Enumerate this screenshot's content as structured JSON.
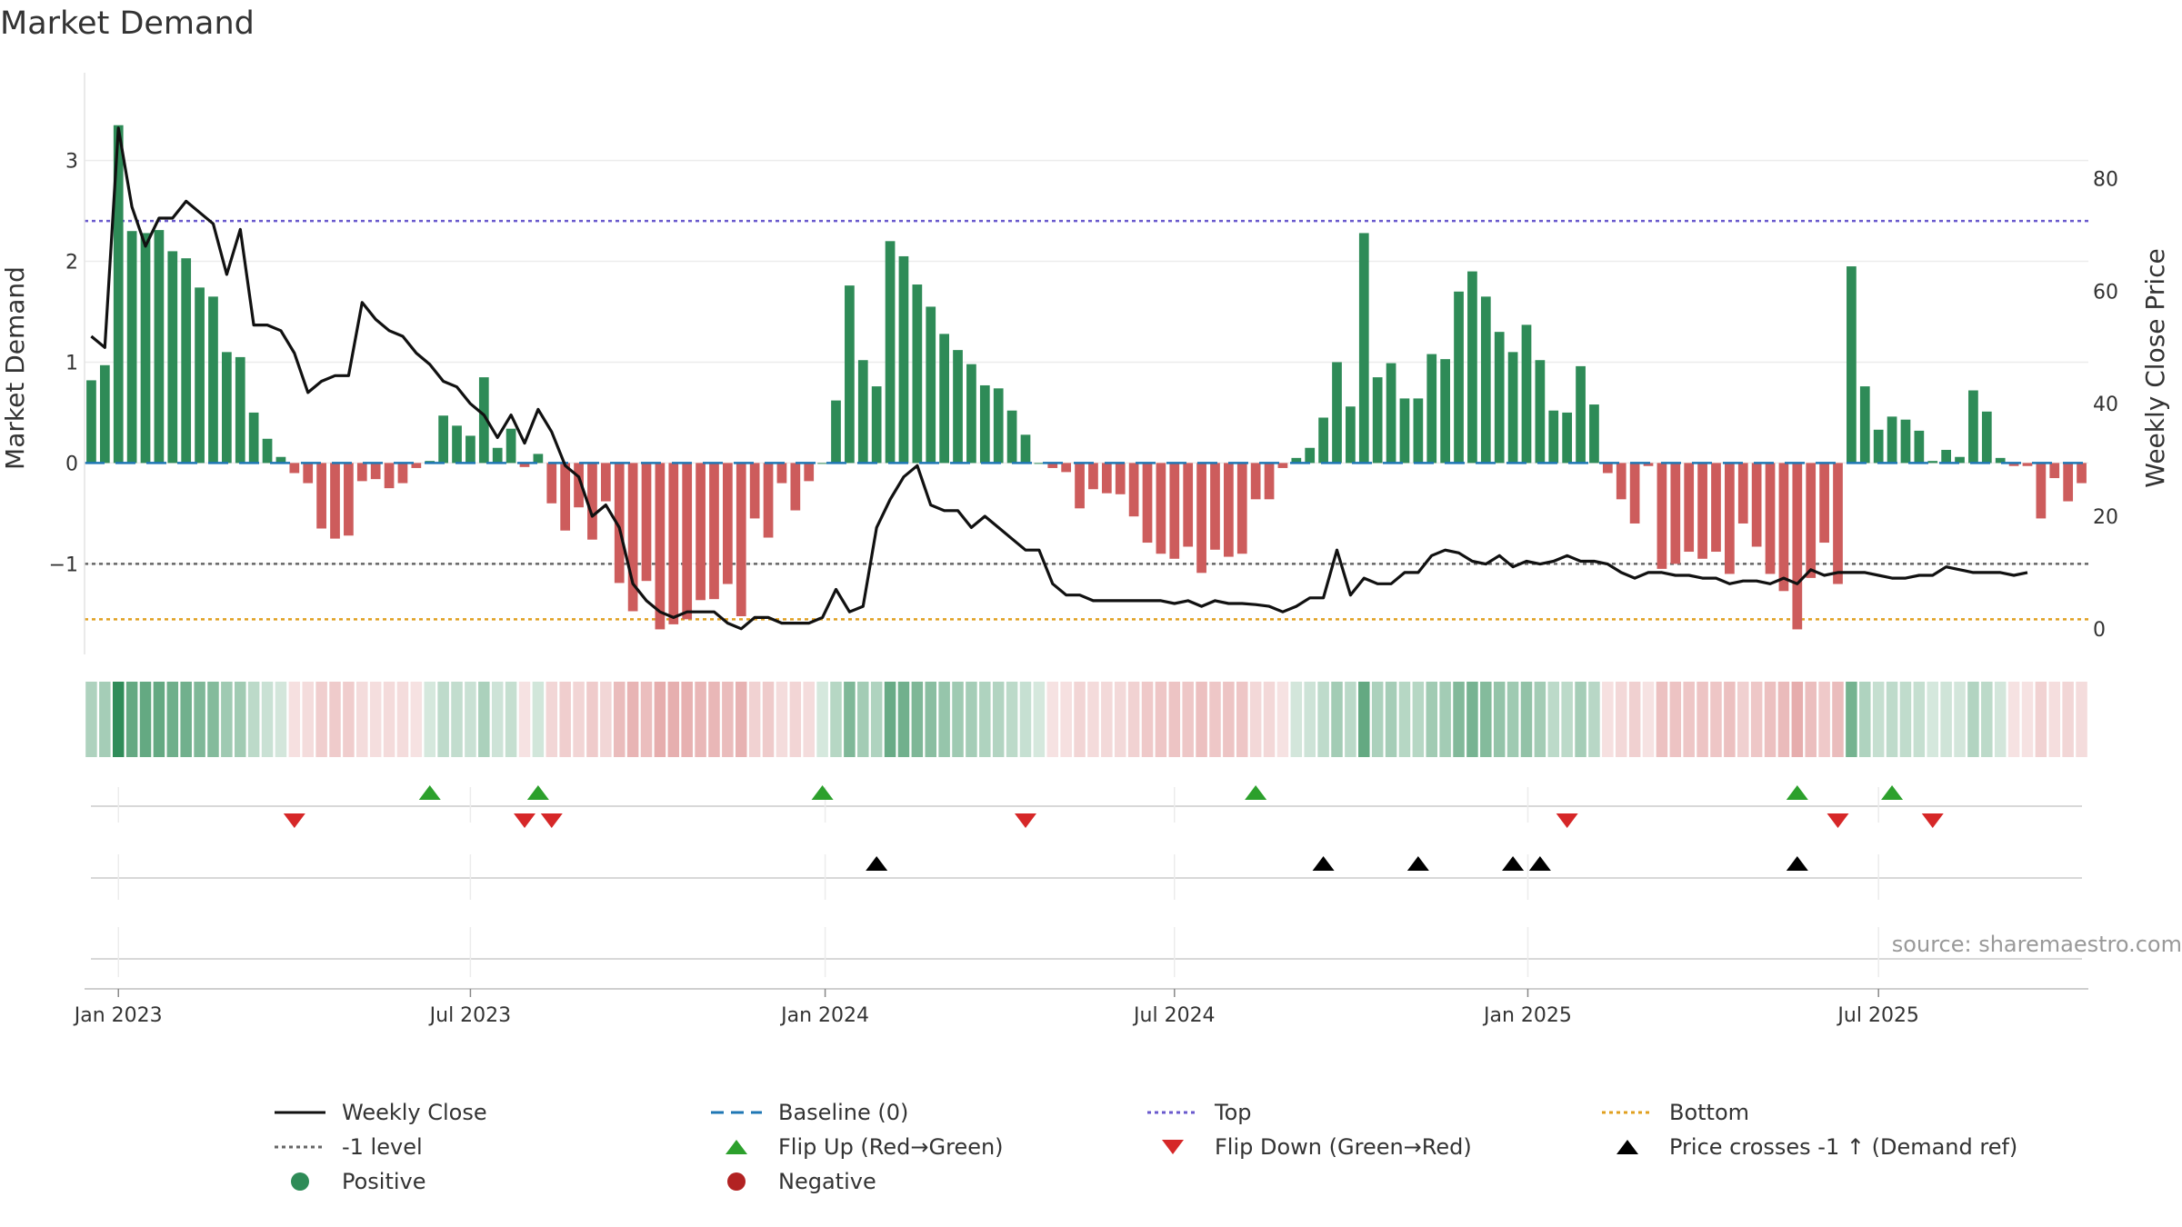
{
  "title": "Market Demand",
  "source": "source: sharemaestro.com",
  "colors": {
    "positive": "#2e8b57",
    "negative": "#cd5c5c",
    "price": "#111111",
    "baseline": "#1f77b4",
    "top": "#6a5acd",
    "minus1": "#666666",
    "bottom": "#e0a020",
    "flip_up": "#2ca02c",
    "flip_down": "#d62728",
    "cross": "#000000"
  },
  "chart_data": {
    "type": "bar+line",
    "title": "Market Demand",
    "ylabel": "Market Demand",
    "y2label": "Weekly Close Price",
    "ylim": [
      -1.7,
      3.6
    ],
    "y_ticks": [
      "3",
      "2",
      "1",
      "0",
      "−1"
    ],
    "y_tick_values": [
      3,
      2,
      1,
      0,
      -1
    ],
    "y2lim": [
      -1,
      94
    ],
    "y2_ticks": [
      "80",
      "60",
      "40",
      "20",
      "0"
    ],
    "y2_tick_values": [
      80,
      60,
      40,
      20,
      0
    ],
    "x_ticks": [
      "Jan 2023",
      "Jul 2023",
      "Jan 2024",
      "Jul 2024",
      "Jan 2025",
      "Jul 2025"
    ],
    "x_tick_weeks": [
      2,
      28,
      54.2,
      80,
      106.1,
      132
    ],
    "reference_lines": {
      "top": 2.4,
      "minus_one": -1,
      "bottom": -1.55,
      "baseline": 0
    },
    "demand": [
      0.82,
      0.97,
      3.35,
      2.3,
      2.28,
      2.31,
      2.1,
      2.03,
      1.74,
      1.65,
      1.1,
      1.05,
      0.5,
      0.24,
      0.06,
      -0.1,
      -0.2,
      -0.65,
      -0.75,
      -0.72,
      -0.18,
      -0.16,
      -0.25,
      -0.2,
      -0.05,
      0.02,
      0.47,
      0.37,
      0.27,
      0.85,
      0.15,
      0.34,
      -0.04,
      0.09,
      -0.4,
      -0.67,
      -0.44,
      -0.76,
      -0.38,
      -1.19,
      -1.47,
      -1.17,
      -1.65,
      -1.6,
      -1.55,
      -1.36,
      -1.35,
      -1.2,
      -1.52,
      -0.55,
      -0.74,
      -0.2,
      -0.47,
      -0.18,
      0.0,
      0.62,
      1.76,
      1.02,
      0.76,
      2.2,
      2.05,
      1.77,
      1.55,
      1.28,
      1.12,
      0.98,
      0.77,
      0.74,
      0.52,
      0.28,
      0.0,
      -0.05,
      -0.09,
      -0.45,
      -0.26,
      -0.3,
      -0.31,
      -0.53,
      -0.79,
      -0.9,
      -0.95,
      -0.83,
      -1.09,
      -0.86,
      -0.93,
      -0.9,
      -0.36,
      -0.36,
      -0.05,
      0.05,
      0.15,
      0.45,
      1.0,
      0.56,
      2.28,
      0.85,
      0.99,
      0.64,
      0.64,
      1.08,
      1.03,
      1.7,
      1.9,
      1.65,
      1.3,
      1.1,
      1.37,
      1.02,
      0.52,
      0.5,
      0.96,
      0.58,
      -0.1,
      -0.36,
      -0.6,
      -0.03,
      -1.05,
      -1.0,
      -0.88,
      -0.95,
      -0.88,
      -1.1,
      -0.6,
      -0.83,
      -1.1,
      -1.27,
      -1.65,
      -1.14,
      -0.79,
      -1.2,
      1.95,
      0.76,
      0.33,
      0.46,
      0.43,
      0.32,
      0.02,
      0.13,
      0.06,
      0.72,
      0.51,
      0.05,
      -0.03,
      -0.03,
      -0.55,
      -0.15,
      -0.38,
      -0.2
    ],
    "price": [
      52,
      50,
      89,
      75,
      68,
      73,
      73,
      76,
      74,
      72,
      63,
      71,
      54,
      54,
      53,
      49,
      42,
      44,
      45,
      45,
      58,
      55,
      53,
      52,
      49,
      47,
      44,
      43,
      40,
      38,
      34,
      38,
      33,
      39,
      35,
      29,
      27,
      20,
      22,
      18,
      8,
      5,
      3,
      2,
      3,
      3,
      3,
      1,
      0,
      2,
      2,
      1,
      1,
      1,
      2,
      7,
      3,
      4,
      18,
      23,
      27,
      29,
      22,
      21,
      21,
      18,
      20,
      18,
      16,
      14,
      14,
      8,
      6,
      6,
      5,
      5,
      5,
      5,
      5,
      5,
      4.5,
      5,
      4,
      5,
      4.5,
      4.5,
      4.3,
      4,
      3,
      4,
      5.5,
      5.5,
      14,
      6,
      9,
      8,
      8,
      10,
      10,
      13,
      14,
      13.5,
      12,
      11.5,
      13,
      11,
      12,
      11.5,
      12,
      13,
      12,
      12,
      11.5,
      10,
      9,
      10,
      10,
      9.5,
      9.5,
      9,
      9,
      8,
      8.5,
      8.5,
      8,
      9,
      8,
      10.5,
      9.5,
      10,
      10,
      10,
      9.5,
      9,
      9,
      9.5,
      9.5,
      11,
      10.5,
      10,
      10,
      10,
      9.5,
      10
    ],
    "flip_up_weeks": [
      25,
      33,
      54,
      86,
      126,
      133
    ],
    "flip_down_weeks": [
      15,
      32,
      34,
      69,
      109,
      129,
      136
    ],
    "price_cross_weeks": [
      58,
      91,
      98,
      105,
      107,
      126
    ]
  },
  "legend": [
    {
      "label": "Weekly Close",
      "kind": "solid-line",
      "color": "#111111"
    },
    {
      "label": "Baseline (0)",
      "kind": "dashed-line",
      "color": "#1f77b4"
    },
    {
      "label": "Top",
      "kind": "dotted-line",
      "color": "#6a5acd"
    },
    {
      "label": "Bottom",
      "kind": "dotted-line",
      "color": "#e0a020"
    },
    {
      "label": "-1 level",
      "kind": "dotted-line",
      "color": "#666666"
    },
    {
      "label": "Flip Up (Red→Green)",
      "kind": "triangle-up",
      "color": "#2ca02c"
    },
    {
      "label": "Flip Down (Green→Red)",
      "kind": "triangle-down",
      "color": "#d62728"
    },
    {
      "label": "Price crosses -1 ↑ (Demand ref)",
      "kind": "triangle-up",
      "color": "#000000"
    },
    {
      "label": "Positive",
      "kind": "circle",
      "color": "#2e8b57"
    },
    {
      "label": "Negative",
      "kind": "circle",
      "color": "#b22222"
    }
  ]
}
